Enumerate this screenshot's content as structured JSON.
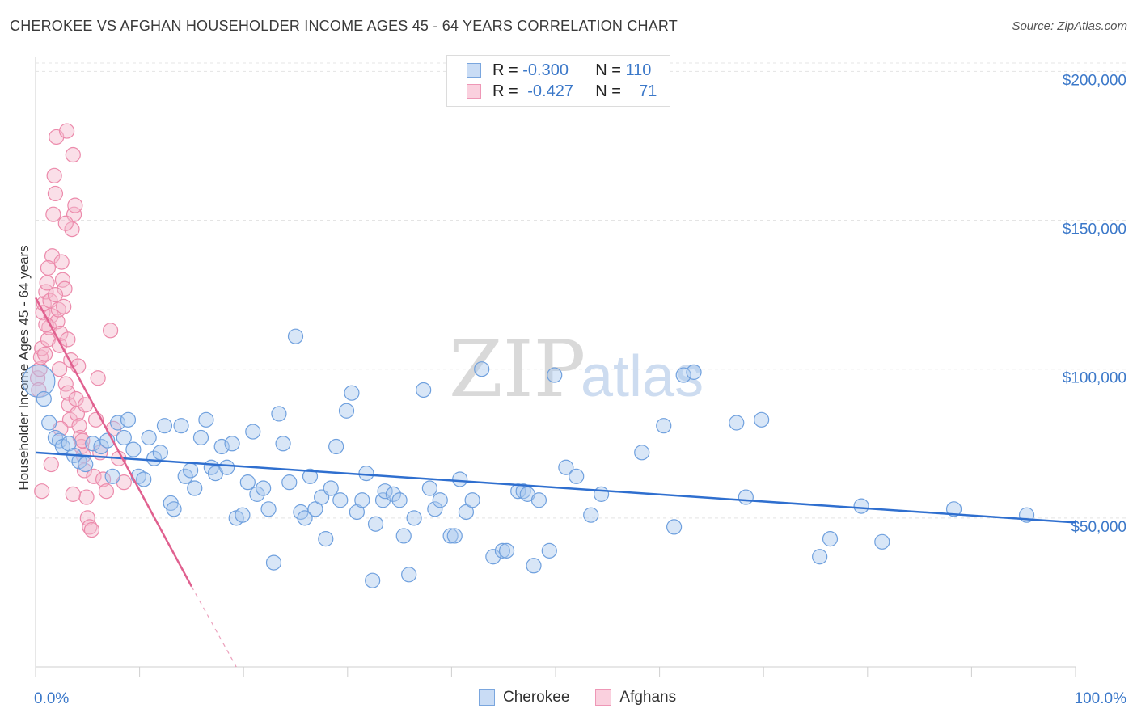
{
  "title": "CHEROKEE VS AFGHAN HOUSEHOLDER INCOME AGES 45 - 64 YEARS CORRELATION CHART",
  "source": "Source: ZipAtlas.com",
  "watermark": {
    "zip": "ZIP",
    "atlas": "atlas"
  },
  "legend": {
    "rows": [
      {
        "r_label": "R =",
        "r_value": "-0.300",
        "n_label": "N =",
        "n_value": "110",
        "color": "#a9c8ee"
      },
      {
        "r_label": "R =",
        "r_value": "-0.427",
        "n_label": "N =",
        "n_value": "71",
        "color": "#f5b7cc"
      }
    ]
  },
  "bottom_legend": [
    {
      "label": "Cherokee",
      "color": "#a9c8ee"
    },
    {
      "label": "Afghans",
      "color": "#f5b7cc"
    }
  ],
  "chart_data": {
    "type": "scatter",
    "title": "CHEROKEE VS AFGHAN HOUSEHOLDER INCOME AGES 45 - 64 YEARS CORRELATION CHART",
    "xlabel": "",
    "ylabel": "Householder Income Ages 45 - 64 years",
    "xlim": [
      0,
      100
    ],
    "ylim": [
      0,
      205000
    ],
    "x_tick_labels": [
      "0.0%",
      "100.0%"
    ],
    "y_ticks": [
      50000,
      100000,
      150000,
      200000
    ],
    "y_tick_labels": [
      "$50,000",
      "$100,000",
      "$150,000",
      "$200,000"
    ],
    "grid": true,
    "series": [
      {
        "name": "Cherokee",
        "color": "#6fa0de",
        "fill": "#a9c8ee",
        "trend": {
          "x": [
            0,
            100
          ],
          "y": [
            72000,
            48500
          ],
          "stroke": "#2f6fcf"
        },
        "points": [
          [
            0.3,
            96000
          ],
          [
            0.8,
            90000
          ],
          [
            1.3,
            82000
          ],
          [
            1.9,
            77000
          ],
          [
            2.3,
            76000
          ],
          [
            2.6,
            74000
          ],
          [
            3.2,
            75000
          ],
          [
            3.7,
            71000
          ],
          [
            4.2,
            69000
          ],
          [
            4.8,
            68000
          ],
          [
            5.5,
            75000
          ],
          [
            6.3,
            74000
          ],
          [
            6.9,
            76000
          ],
          [
            7.4,
            64000
          ],
          [
            7.9,
            82000
          ],
          [
            8.5,
            77000
          ],
          [
            8.9,
            83000
          ],
          [
            9.4,
            73000
          ],
          [
            9.9,
            64000
          ],
          [
            10.4,
            63000
          ],
          [
            10.9,
            77000
          ],
          [
            11.4,
            70000
          ],
          [
            12.0,
            72000
          ],
          [
            12.4,
            81000
          ],
          [
            13.0,
            55000
          ],
          [
            13.3,
            53000
          ],
          [
            14.0,
            81000
          ],
          [
            14.4,
            64000
          ],
          [
            14.9,
            66000
          ],
          [
            15.3,
            60000
          ],
          [
            15.9,
            77000
          ],
          [
            16.4,
            83000
          ],
          [
            16.9,
            67000
          ],
          [
            17.3,
            65000
          ],
          [
            17.9,
            74000
          ],
          [
            18.4,
            67000
          ],
          [
            18.9,
            75000
          ],
          [
            19.3,
            50000
          ],
          [
            19.9,
            51000
          ],
          [
            20.4,
            62000
          ],
          [
            20.9,
            79000
          ],
          [
            21.3,
            58000
          ],
          [
            21.9,
            60000
          ],
          [
            22.4,
            53000
          ],
          [
            22.9,
            35000
          ],
          [
            23.4,
            85000
          ],
          [
            23.8,
            75000
          ],
          [
            24.4,
            62000
          ],
          [
            25.0,
            111000
          ],
          [
            25.5,
            52000
          ],
          [
            25.9,
            50000
          ],
          [
            26.4,
            64000
          ],
          [
            26.9,
            53000
          ],
          [
            27.5,
            57000
          ],
          [
            27.9,
            43000
          ],
          [
            28.4,
            60000
          ],
          [
            28.9,
            74000
          ],
          [
            29.3,
            56000
          ],
          [
            29.9,
            86000
          ],
          [
            30.4,
            92000
          ],
          [
            30.9,
            52000
          ],
          [
            31.4,
            56000
          ],
          [
            31.8,
            65000
          ],
          [
            32.4,
            29000
          ],
          [
            32.7,
            48000
          ],
          [
            33.4,
            56000
          ],
          [
            33.6,
            59000
          ],
          [
            34.4,
            58000
          ],
          [
            35.0,
            56000
          ],
          [
            35.4,
            44000
          ],
          [
            35.9,
            31000
          ],
          [
            36.4,
            50000
          ],
          [
            37.3,
            93000
          ],
          [
            37.9,
            60000
          ],
          [
            38.4,
            53000
          ],
          [
            38.9,
            56000
          ],
          [
            39.9,
            44000
          ],
          [
            40.3,
            44000
          ],
          [
            40.8,
            63000
          ],
          [
            41.4,
            52000
          ],
          [
            42.0,
            56000
          ],
          [
            42.9,
            100000
          ],
          [
            44.0,
            37000
          ],
          [
            44.9,
            39000
          ],
          [
            45.3,
            39000
          ],
          [
            46.4,
            59000
          ],
          [
            46.9,
            59000
          ],
          [
            47.3,
            58000
          ],
          [
            47.9,
            34000
          ],
          [
            48.4,
            56000
          ],
          [
            49.4,
            39000
          ],
          [
            49.9,
            98000
          ],
          [
            51.0,
            67000
          ],
          [
            52.0,
            64000
          ],
          [
            53.4,
            51000
          ],
          [
            54.4,
            58000
          ],
          [
            58.3,
            72000
          ],
          [
            60.4,
            81000
          ],
          [
            61.4,
            47000
          ],
          [
            62.3,
            98000
          ],
          [
            63.3,
            99000
          ],
          [
            67.4,
            82000
          ],
          [
            68.3,
            57000
          ],
          [
            69.8,
            83000
          ],
          [
            75.4,
            37000
          ],
          [
            76.4,
            43000
          ],
          [
            79.4,
            54000
          ],
          [
            81.4,
            42000
          ],
          [
            88.3,
            53000
          ],
          [
            95.3,
            51000
          ]
        ]
      },
      {
        "name": "Afghans",
        "color": "#ec8aab",
        "fill": "#f5b7cc",
        "trend": {
          "x": [
            0,
            15
          ],
          "y": [
            124000,
            27000
          ],
          "stroke": "#e0608f",
          "dashed_extension_to": [
            19.3,
            0
          ]
        },
        "points": [
          [
            0.2,
            97000
          ],
          [
            0.3,
            93000
          ],
          [
            0.4,
            100000
          ],
          [
            0.5,
            104000
          ],
          [
            0.6,
            107000
          ],
          [
            0.7,
            119000
          ],
          [
            0.8,
            122000
          ],
          [
            0.9,
            105000
          ],
          [
            1.0,
            126000
          ],
          [
            1.1,
            129000
          ],
          [
            1.2,
            110000
          ],
          [
            1.3,
            114000
          ],
          [
            1.4,
            123000
          ],
          [
            1.5,
            118000
          ],
          [
            1.6,
            138000
          ],
          [
            1.7,
            152000
          ],
          [
            1.8,
            165000
          ],
          [
            1.9,
            159000
          ],
          [
            2.0,
            178000
          ],
          [
            2.1,
            116000
          ],
          [
            2.2,
            120000
          ],
          [
            2.3,
            108000
          ],
          [
            2.4,
            112000
          ],
          [
            2.5,
            136000
          ],
          [
            2.6,
            130000
          ],
          [
            2.7,
            121000
          ],
          [
            2.8,
            127000
          ],
          [
            2.9,
            95000
          ],
          [
            3.0,
            180000
          ],
          [
            3.1,
            92000
          ],
          [
            3.2,
            88000
          ],
          [
            3.3,
            83000
          ],
          [
            3.4,
            103000
          ],
          [
            3.5,
            147000
          ],
          [
            3.6,
            172000
          ],
          [
            3.7,
            152000
          ],
          [
            3.8,
            155000
          ],
          [
            3.9,
            90000
          ],
          [
            4.0,
            85000
          ],
          [
            4.1,
            101000
          ],
          [
            4.2,
            81000
          ],
          [
            4.3,
            77000
          ],
          [
            4.4,
            74000
          ],
          [
            4.5,
            76000
          ],
          [
            4.6,
            71000
          ],
          [
            4.7,
            66000
          ],
          [
            4.8,
            88000
          ],
          [
            4.9,
            57000
          ],
          [
            5.0,
            50000
          ],
          [
            5.2,
            47000
          ],
          [
            5.4,
            46000
          ],
          [
            5.6,
            64000
          ],
          [
            5.8,
            83000
          ],
          [
            6.0,
            97000
          ],
          [
            6.2,
            72000
          ],
          [
            6.5,
            63000
          ],
          [
            6.8,
            59000
          ],
          [
            7.2,
            113000
          ],
          [
            7.5,
            80000
          ],
          [
            8.0,
            70000
          ],
          [
            8.5,
            62000
          ],
          [
            0.6,
            59000
          ],
          [
            1.5,
            68000
          ],
          [
            2.4,
            80000
          ],
          [
            3.6,
            58000
          ],
          [
            2.9,
            149000
          ],
          [
            1.2,
            134000
          ],
          [
            1.9,
            125000
          ],
          [
            2.3,
            100000
          ],
          [
            3.1,
            110000
          ],
          [
            1.0,
            115000
          ]
        ]
      }
    ]
  }
}
